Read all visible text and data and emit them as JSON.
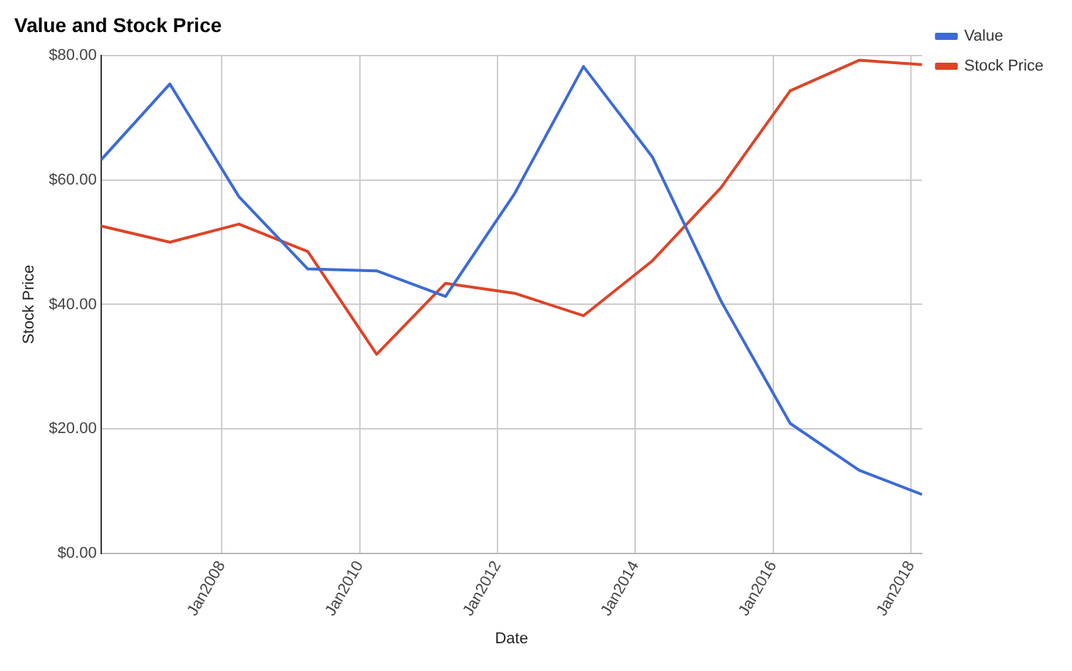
{
  "chart_data": {
    "type": "line",
    "title": "Value and Stock Price",
    "xlabel": "Date",
    "ylabel": "Stock Price",
    "x": [
      "2006-04",
      "2007-04",
      "2008-04",
      "2009-04",
      "2010-04",
      "2011-04",
      "2012-04",
      "2013-04",
      "2014-04",
      "2015-04",
      "2016-04",
      "2017-04",
      "2018-03"
    ],
    "series": [
      {
        "name": "Value",
        "color": "#3c6bd6",
        "values": [
          63.2,
          75.4,
          57.3,
          45.7,
          45.4,
          41.3,
          57.8,
          78.2,
          63.7,
          40.5,
          20.9,
          13.4,
          9.5
        ]
      },
      {
        "name": "Stock Price",
        "color": "#dd4427",
        "values": [
          52.6,
          50,
          52.9,
          48.5,
          32,
          43.4,
          41.8,
          38.2,
          47,
          58.8,
          74.3,
          79.2,
          78.5
        ]
      }
    ],
    "xlim": [
      "2006-04",
      "2018-03"
    ],
    "xticks": [
      {
        "value": "2008-01",
        "label": "Jan2008"
      },
      {
        "value": "2010-01",
        "label": "Jan2010"
      },
      {
        "value": "2012-01",
        "label": "Jan2012"
      },
      {
        "value": "2014-01",
        "label": "Jan2014"
      },
      {
        "value": "2016-01",
        "label": "Jan2016"
      },
      {
        "value": "2018-01",
        "label": "Jan2018"
      }
    ],
    "ylim": [
      0,
      80
    ],
    "yticks": [
      {
        "value": 0,
        "label": "$0.00"
      },
      {
        "value": 20,
        "label": "$20.00"
      },
      {
        "value": 40,
        "label": "$40.00"
      },
      {
        "value": 60,
        "label": "$60.00"
      },
      {
        "value": 80,
        "label": "$80.00"
      }
    ],
    "grid": true,
    "legend": "top right",
    "marker": "none",
    "line_style": "solid"
  }
}
